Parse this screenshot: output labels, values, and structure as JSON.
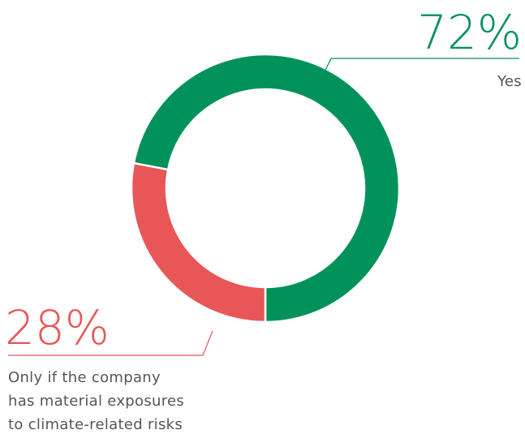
{
  "chart_data": {
    "type": "donut",
    "categories": [
      "Yes",
      "Only if the company\nhas material exposures\nto climate-related risks"
    ],
    "values": [
      72,
      28
    ],
    "value_labels": [
      "72%",
      "28%"
    ],
    "colors": [
      "#00925a",
      "#e85657"
    ]
  }
}
